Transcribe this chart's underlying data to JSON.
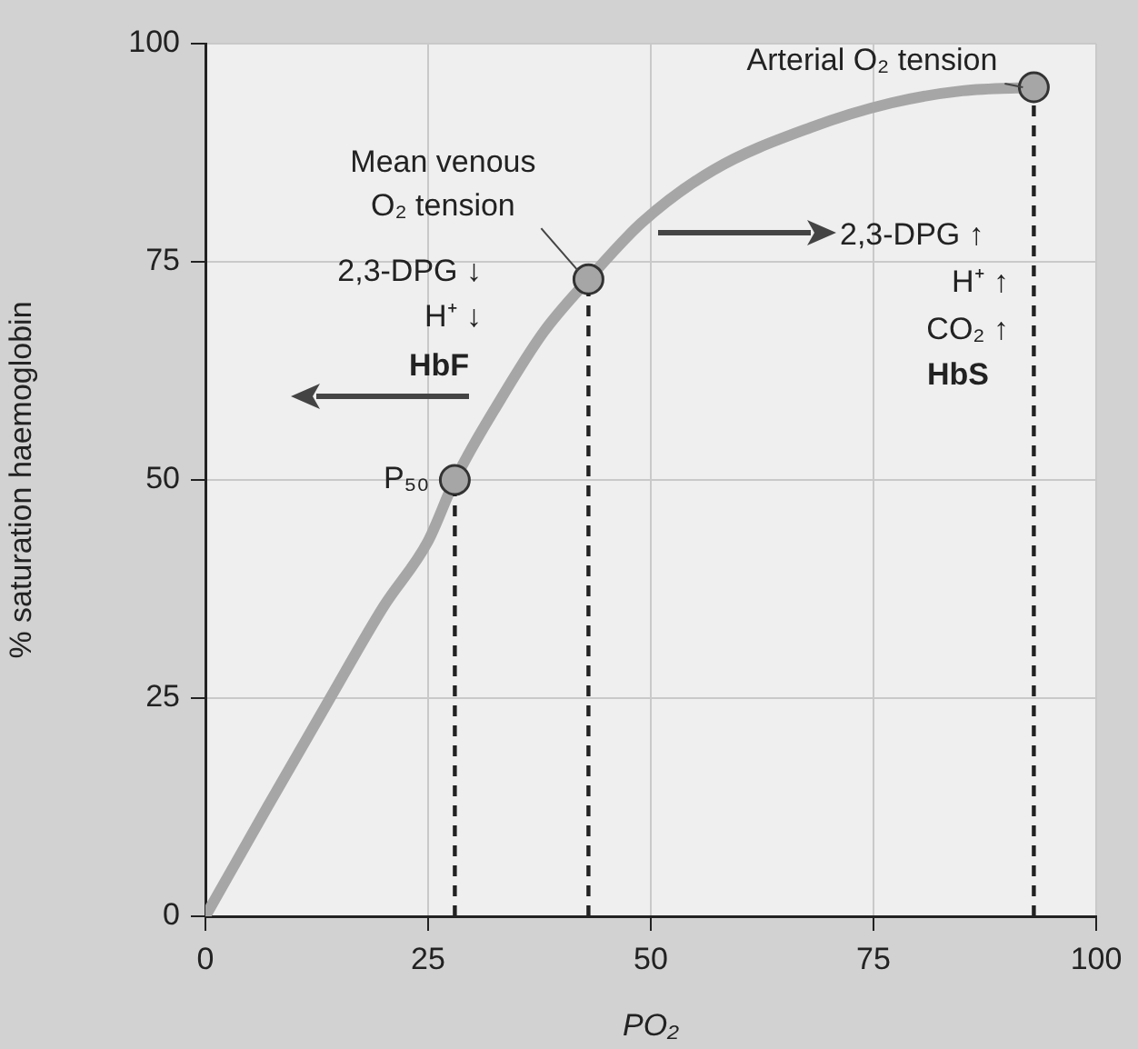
{
  "chart_data": {
    "type": "line",
    "xlabel": "PO₂",
    "ylabel": "% saturation haemoglobin",
    "xlim": [
      0,
      100
    ],
    "xticks": [
      0,
      25,
      50,
      75,
      100
    ],
    "ylim": [
      0,
      100
    ],
    "yticks": [
      0,
      25,
      50,
      75,
      100
    ],
    "grid": true,
    "legend": false,
    "marker": "none",
    "line_style": "solid",
    "series": [
      {
        "color": "#a6a6a6",
        "x": [
          0,
          7,
          14,
          20,
          25,
          28,
          33,
          38,
          43,
          49,
          57,
          68,
          77,
          85,
          93
        ],
        "values": [
          0,
          12.6,
          25,
          35.5,
          43,
          50,
          59,
          67,
          73,
          79.5,
          85.5,
          90.4,
          93.2,
          94.6,
          95
        ]
      },
      {
        "type": "scatter",
        "marker": "circle",
        "color": "#a6a6a6",
        "x": [
          28,
          43,
          93
        ],
        "values": [
          50,
          73,
          95
        ]
      }
    ],
    "ref_lines": [
      {
        "axis": "x",
        "value": 28,
        "color": "#222222",
        "line_style": "dashed"
      },
      {
        "axis": "x",
        "value": 43,
        "color": "#222222",
        "line_style": "dashed"
      },
      {
        "axis": "x",
        "value": 93,
        "color": "#222222",
        "line_style": "dashed"
      }
    ],
    "annotations": [
      {
        "text": "Arterial O₂ tension",
        "x": 93,
        "y": 95
      },
      {
        "text": "Mean venous O₂ tension",
        "x": 43,
        "y": 73
      },
      {
        "text": "P₅₀",
        "x": 28,
        "y": 50
      },
      "2,3-DPG ↓",
      "H⁺ ↓",
      "HbF",
      "2,3-DPG ↑",
      "H⁺ ↑",
      "CO₂ ↑",
      "HbS"
    ]
  }
}
